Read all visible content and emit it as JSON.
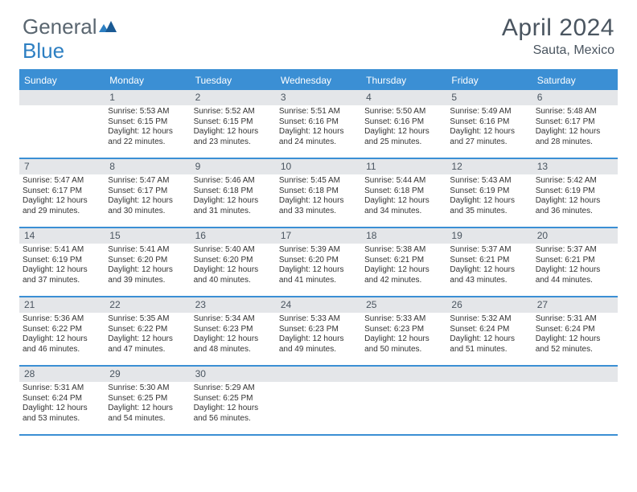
{
  "brand": {
    "part1": "General",
    "part2": "Blue"
  },
  "title": "April 2024",
  "location": "Sauta, Mexico",
  "colors": {
    "header_bg": "#3b8fd4",
    "header_text": "#ffffff",
    "daynum_bg": "#e4e6e9",
    "text": "#333333",
    "title_text": "#4a5560",
    "brand_gray": "#5a6670",
    "brand_blue": "#2d7fc2"
  },
  "day_headers": [
    "Sunday",
    "Monday",
    "Tuesday",
    "Wednesday",
    "Thursday",
    "Friday",
    "Saturday"
  ],
  "weeks": [
    [
      {
        "day": null
      },
      {
        "day": 1,
        "sunrise": "5:53 AM",
        "sunset": "6:15 PM",
        "daylight": "12 hours and 22 minutes."
      },
      {
        "day": 2,
        "sunrise": "5:52 AM",
        "sunset": "6:15 PM",
        "daylight": "12 hours and 23 minutes."
      },
      {
        "day": 3,
        "sunrise": "5:51 AM",
        "sunset": "6:16 PM",
        "daylight": "12 hours and 24 minutes."
      },
      {
        "day": 4,
        "sunrise": "5:50 AM",
        "sunset": "6:16 PM",
        "daylight": "12 hours and 25 minutes."
      },
      {
        "day": 5,
        "sunrise": "5:49 AM",
        "sunset": "6:16 PM",
        "daylight": "12 hours and 27 minutes."
      },
      {
        "day": 6,
        "sunrise": "5:48 AM",
        "sunset": "6:17 PM",
        "daylight": "12 hours and 28 minutes."
      }
    ],
    [
      {
        "day": 7,
        "sunrise": "5:47 AM",
        "sunset": "6:17 PM",
        "daylight": "12 hours and 29 minutes."
      },
      {
        "day": 8,
        "sunrise": "5:47 AM",
        "sunset": "6:17 PM",
        "daylight": "12 hours and 30 minutes."
      },
      {
        "day": 9,
        "sunrise": "5:46 AM",
        "sunset": "6:18 PM",
        "daylight": "12 hours and 31 minutes."
      },
      {
        "day": 10,
        "sunrise": "5:45 AM",
        "sunset": "6:18 PM",
        "daylight": "12 hours and 33 minutes."
      },
      {
        "day": 11,
        "sunrise": "5:44 AM",
        "sunset": "6:18 PM",
        "daylight": "12 hours and 34 minutes."
      },
      {
        "day": 12,
        "sunrise": "5:43 AM",
        "sunset": "6:19 PM",
        "daylight": "12 hours and 35 minutes."
      },
      {
        "day": 13,
        "sunrise": "5:42 AM",
        "sunset": "6:19 PM",
        "daylight": "12 hours and 36 minutes."
      }
    ],
    [
      {
        "day": 14,
        "sunrise": "5:41 AM",
        "sunset": "6:19 PM",
        "daylight": "12 hours and 37 minutes."
      },
      {
        "day": 15,
        "sunrise": "5:41 AM",
        "sunset": "6:20 PM",
        "daylight": "12 hours and 39 minutes."
      },
      {
        "day": 16,
        "sunrise": "5:40 AM",
        "sunset": "6:20 PM",
        "daylight": "12 hours and 40 minutes."
      },
      {
        "day": 17,
        "sunrise": "5:39 AM",
        "sunset": "6:20 PM",
        "daylight": "12 hours and 41 minutes."
      },
      {
        "day": 18,
        "sunrise": "5:38 AM",
        "sunset": "6:21 PM",
        "daylight": "12 hours and 42 minutes."
      },
      {
        "day": 19,
        "sunrise": "5:37 AM",
        "sunset": "6:21 PM",
        "daylight": "12 hours and 43 minutes."
      },
      {
        "day": 20,
        "sunrise": "5:37 AM",
        "sunset": "6:21 PM",
        "daylight": "12 hours and 44 minutes."
      }
    ],
    [
      {
        "day": 21,
        "sunrise": "5:36 AM",
        "sunset": "6:22 PM",
        "daylight": "12 hours and 46 minutes."
      },
      {
        "day": 22,
        "sunrise": "5:35 AM",
        "sunset": "6:22 PM",
        "daylight": "12 hours and 47 minutes."
      },
      {
        "day": 23,
        "sunrise": "5:34 AM",
        "sunset": "6:23 PM",
        "daylight": "12 hours and 48 minutes."
      },
      {
        "day": 24,
        "sunrise": "5:33 AM",
        "sunset": "6:23 PM",
        "daylight": "12 hours and 49 minutes."
      },
      {
        "day": 25,
        "sunrise": "5:33 AM",
        "sunset": "6:23 PM",
        "daylight": "12 hours and 50 minutes."
      },
      {
        "day": 26,
        "sunrise": "5:32 AM",
        "sunset": "6:24 PM",
        "daylight": "12 hours and 51 minutes."
      },
      {
        "day": 27,
        "sunrise": "5:31 AM",
        "sunset": "6:24 PM",
        "daylight": "12 hours and 52 minutes."
      }
    ],
    [
      {
        "day": 28,
        "sunrise": "5:31 AM",
        "sunset": "6:24 PM",
        "daylight": "12 hours and 53 minutes."
      },
      {
        "day": 29,
        "sunrise": "5:30 AM",
        "sunset": "6:25 PM",
        "daylight": "12 hours and 54 minutes."
      },
      {
        "day": 30,
        "sunrise": "5:29 AM",
        "sunset": "6:25 PM",
        "daylight": "12 hours and 56 minutes."
      },
      {
        "day": null
      },
      {
        "day": null
      },
      {
        "day": null
      },
      {
        "day": null
      }
    ]
  ],
  "labels": {
    "sunrise": "Sunrise:",
    "sunset": "Sunset:",
    "daylight": "Daylight:"
  }
}
